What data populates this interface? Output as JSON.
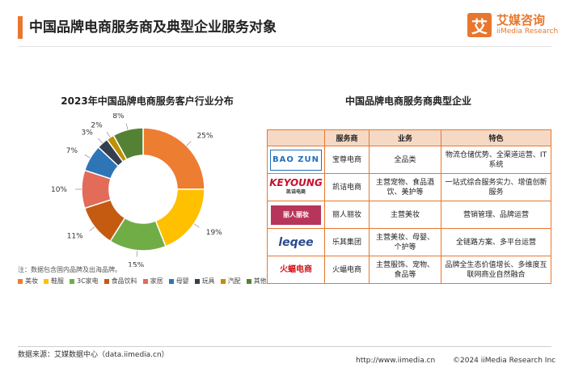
{
  "header": {
    "title": "中国品牌电商服务商及典型企业服务对象",
    "logo_mark": "艾",
    "logo_cn": "艾媒咨询",
    "logo_en": "iiMedia Research"
  },
  "chart_data": {
    "type": "pie",
    "title": "2023年中国品牌电商服务客户行业分布",
    "note": "注：数据包含国内品牌及出海品牌。",
    "unit": "%",
    "categories": [
      "美妆",
      "鞋服",
      "3C家电",
      "食品饮料",
      "家居",
      "母婴",
      "玩具",
      "汽配",
      "其他"
    ],
    "values": [
      25,
      19,
      15,
      11,
      10,
      7,
      3,
      2,
      8
    ],
    "labels": [
      "25%",
      "19%",
      "15%",
      "11%",
      "10%",
      "7%",
      "3%",
      "2%",
      "8%"
    ],
    "colors": [
      "#ed7d31",
      "#ffc000",
      "#70ad47",
      "#c55a11",
      "#e26b5a",
      "#2e75b6",
      "#333f50",
      "#bf9000",
      "#548235"
    ],
    "legend_position": "bottom"
  },
  "table": {
    "title": "中国品牌电商服务商典型企业",
    "headers": [
      "",
      "服务商",
      "业务",
      "特色"
    ],
    "rows": [
      {
        "logo": "BAO ZUN",
        "logo_sub": "",
        "name": "宝尊电商",
        "business": "全品类",
        "feature": "物流仓储优势、全渠道运营、IT系统"
      },
      {
        "logo": "KEYOUNG",
        "logo_sub": "凯诘电商",
        "name": "凯诘电商",
        "business": "主营宠物、食品酒饮、美护等",
        "feature": "一站式综合服务实力、增值创新服务"
      },
      {
        "logo": "丽人丽妆",
        "logo_sub": "",
        "name": "丽人丽妆",
        "business": "主营美妆",
        "feature": "营销管理、品牌运营"
      },
      {
        "logo": "leqee",
        "logo_sub": "",
        "name": "乐其集团",
        "business": "主营美妆、母婴、个护等",
        "feature": "全链路方案、多平台运营"
      },
      {
        "logo": "火蝠电商",
        "logo_sub": "",
        "name": "火蝠电商",
        "business": "主营服饰、宠物、食品等",
        "feature": "品牌全生态价值增长、多维度互联网商业自然融合"
      }
    ]
  },
  "footer": {
    "source": "数据来源：艾媒数据中心（data.iimedia.cn）",
    "site": "http://www.iimedia.cn",
    "copyright": "©2024  iiMedia Research  Inc"
  }
}
